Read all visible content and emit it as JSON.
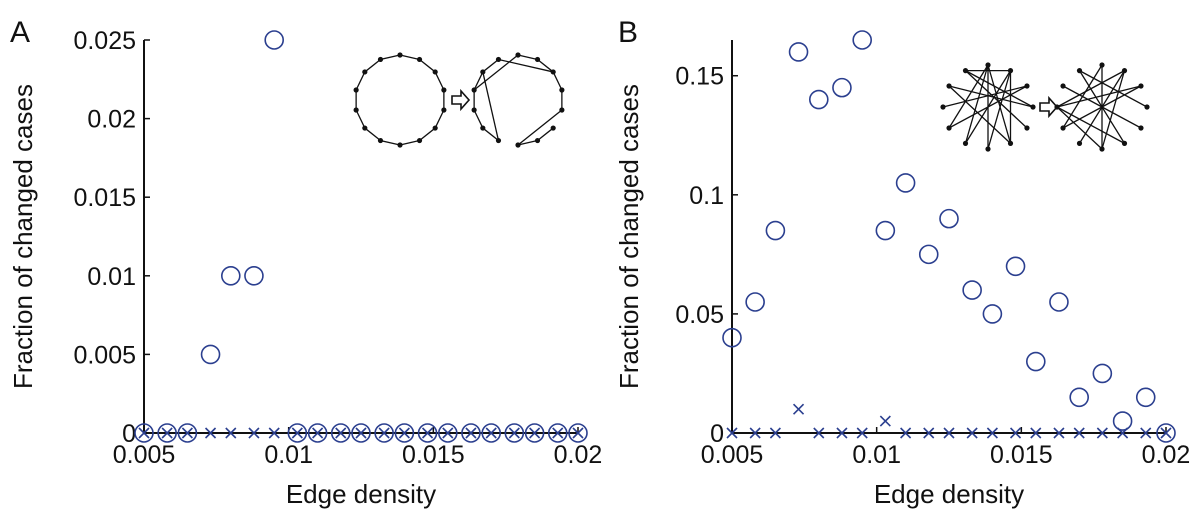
{
  "chart_data": [
    {
      "type": "scatter",
      "panel_label": "A",
      "title": "",
      "xlabel": "Edge density",
      "ylabel": "Fraction of changed cases",
      "xlim": [
        0.005,
        0.02
      ],
      "ylim": [
        0,
        0.025
      ],
      "xticks": [
        0.005,
        0.01,
        0.015,
        0.02
      ],
      "xtick_labels": [
        "0.005",
        "0.01",
        "0.015",
        "0.02"
      ],
      "yticks": [
        0,
        0.005,
        0.01,
        0.015,
        0.02,
        0.025
      ],
      "ytick_labels": [
        "0",
        "0.005",
        "0.01",
        "0.015",
        "0.02",
        "0.025"
      ],
      "grid": false,
      "legend": "none",
      "series": [
        {
          "marker": "circle",
          "color": "#2b3f8f",
          "x": [
            0.005,
            0.0058,
            0.0065,
            0.0073,
            0.008,
            0.0088,
            0.0095,
            0.0103,
            0.011,
            0.0118,
            0.0125,
            0.0133,
            0.014,
            0.0148,
            0.0155,
            0.0163,
            0.017,
            0.0178,
            0.0185,
            0.0193,
            0.02
          ],
          "y": [
            0,
            0,
            0,
            0.005,
            0.01,
            0.01,
            0.025,
            0,
            0,
            0,
            0,
            0,
            0,
            0,
            0,
            0,
            0,
            0,
            0,
            0,
            0
          ]
        },
        {
          "marker": "x",
          "color": "#2b3f8f",
          "x": [
            0.005,
            0.0058,
            0.0065,
            0.0073,
            0.008,
            0.0088,
            0.0095,
            0.0103,
            0.011,
            0.0118,
            0.0125,
            0.0133,
            0.014,
            0.0148,
            0.0155,
            0.0163,
            0.017,
            0.0178,
            0.0185,
            0.0193,
            0.02
          ],
          "y": [
            0,
            0,
            0,
            0,
            0,
            0,
            0,
            0,
            0,
            0,
            0,
            0,
            0,
            0,
            0,
            0,
            0,
            0,
            0,
            0,
            0
          ]
        }
      ],
      "inset": "ring-network-transformation"
    },
    {
      "type": "scatter",
      "panel_label": "B",
      "title": "",
      "xlabel": "Edge density",
      "ylabel": "Fraction of changed cases",
      "xlim": [
        0.005,
        0.02
      ],
      "ylim": [
        0,
        0.165
      ],
      "xticks": [
        0.005,
        0.01,
        0.015,
        0.02
      ],
      "xtick_labels": [
        "0.005",
        "0.01",
        "0.015",
        "0.02"
      ],
      "yticks": [
        0,
        0.05,
        0.1,
        0.15
      ],
      "ytick_labels": [
        "0",
        "0.05",
        "0.1",
        "0.15"
      ],
      "grid": false,
      "legend": "none",
      "series": [
        {
          "marker": "circle",
          "color": "#2b3f8f",
          "x": [
            0.005,
            0.0058,
            0.0065,
            0.0073,
            0.008,
            0.0088,
            0.0095,
            0.0103,
            0.011,
            0.0118,
            0.0125,
            0.0133,
            0.014,
            0.0148,
            0.0155,
            0.0163,
            0.017,
            0.0178,
            0.0185,
            0.0193,
            0.02
          ],
          "y": [
            0.04,
            0.055,
            0.085,
            0.16,
            0.14,
            0.145,
            0.165,
            0.085,
            0.105,
            0.075,
            0.09,
            0.06,
            0.05,
            0.07,
            0.03,
            0.055,
            0.015,
            0.025,
            0.005,
            0.015,
            0.0
          ]
        },
        {
          "marker": "x",
          "color": "#2b3f8f",
          "x": [
            0.005,
            0.0058,
            0.0065,
            0.0073,
            0.008,
            0.0088,
            0.0095,
            0.0103,
            0.011,
            0.0118,
            0.0125,
            0.0133,
            0.014,
            0.0148,
            0.0155,
            0.0163,
            0.017,
            0.0178,
            0.0185,
            0.0193,
            0.02
          ],
          "y": [
            0,
            0,
            0,
            0.01,
            0,
            0,
            0,
            0.005,
            0,
            0,
            0,
            0,
            0,
            0,
            0,
            0,
            0,
            0,
            0,
            0,
            0
          ]
        }
      ],
      "inset": "random-network-transformation"
    }
  ]
}
